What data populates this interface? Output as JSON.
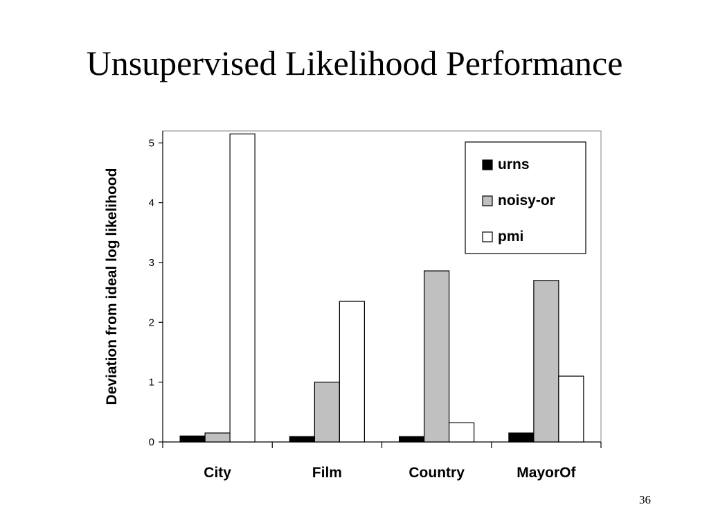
{
  "slide": {
    "title": "Unsupervised Likelihood Performance",
    "page_number": "36"
  },
  "colors": {
    "urns": "#000000",
    "noisy-or": "#c0c0c0",
    "pmi": "#ffffff",
    "plot_border": "#808080"
  },
  "chart_data": {
    "type": "bar",
    "title": "",
    "xlabel": "",
    "ylabel": "Deviation from ideal log likelihood",
    "categories": [
      "City",
      "Film",
      "Country",
      "MayorOf"
    ],
    "series": [
      {
        "name": "urns",
        "values": [
          0.1,
          0.09,
          0.09,
          0.15
        ]
      },
      {
        "name": "noisy-or",
        "values": [
          0.15,
          1.0,
          2.86,
          2.7
        ]
      },
      {
        "name": "pmi",
        "values": [
          5.15,
          2.35,
          0.32,
          1.1
        ]
      }
    ],
    "ylim": [
      0,
      5.2
    ],
    "yticks": [
      0,
      1,
      2,
      3,
      4,
      5
    ],
    "grid": false,
    "legend_position": "top-right"
  }
}
